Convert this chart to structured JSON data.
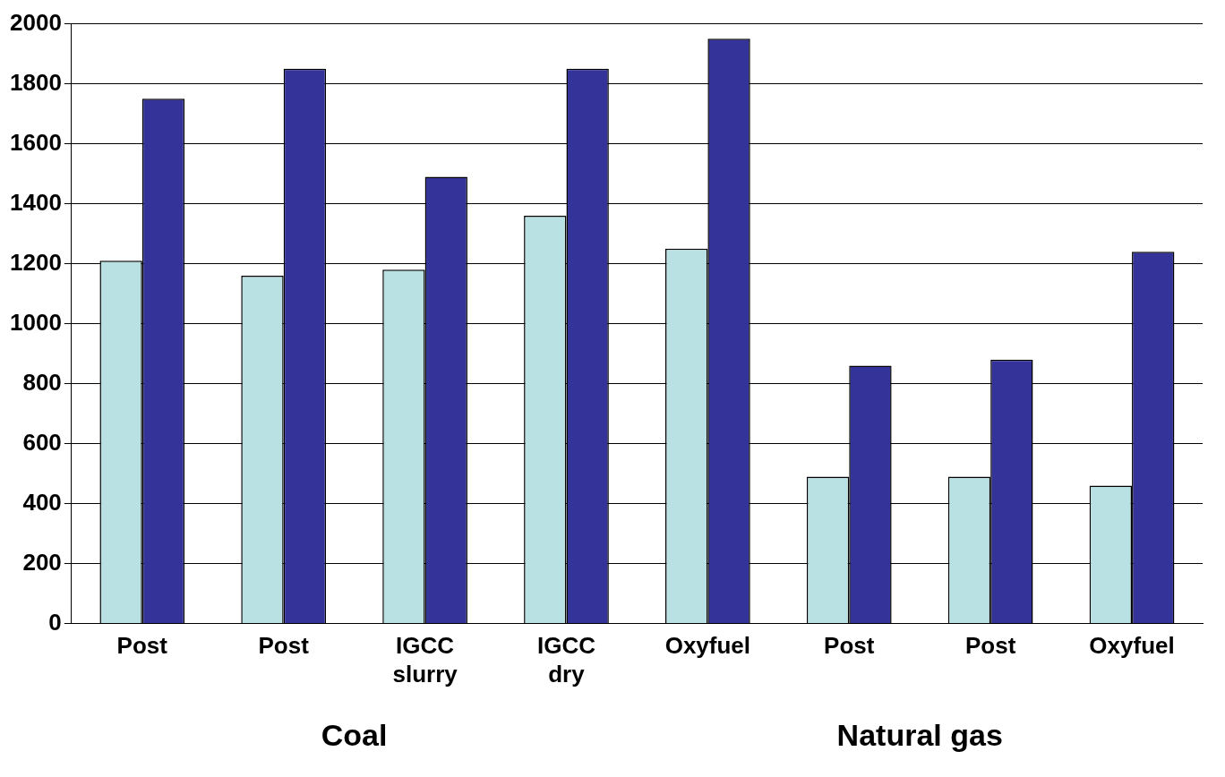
{
  "chart_data": {
    "type": "bar",
    "categories": [
      "Post",
      "Post",
      "IGCC slurry",
      "IGCC dry",
      "Oxyfuel",
      "Post",
      "Post",
      "Oxyfuel"
    ],
    "series": [
      {
        "color": "#b9e0e3",
        "values": [
          1210,
          1160,
          1180,
          1360,
          1250,
          490,
          490,
          460
        ]
      },
      {
        "color": "#333399",
        "values": [
          1750,
          1850,
          1490,
          1850,
          1950,
          860,
          880,
          1240
        ]
      }
    ],
    "ylim": [
      0,
      2000
    ],
    "yticks": [
      0,
      200,
      400,
      600,
      800,
      1000,
      1200,
      1400,
      1600,
      1800,
      2000
    ],
    "grid": "y",
    "legend": false,
    "annotations": [
      "Coal",
      "Natural gas"
    ]
  }
}
